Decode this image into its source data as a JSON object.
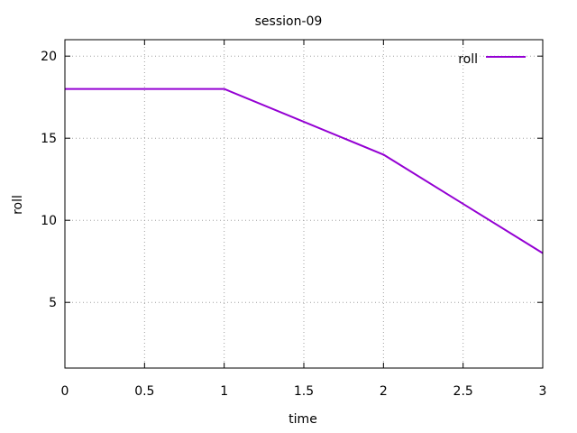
{
  "chart_data": {
    "type": "line",
    "title": "session-09",
    "xlabel": "time",
    "ylabel": "roll",
    "xlim": [
      0,
      3
    ],
    "ylim": [
      1,
      21
    ],
    "xticks": [
      0,
      0.5,
      1,
      1.5,
      2,
      2.5,
      3
    ],
    "xtick_labels": [
      "0",
      "0.5",
      "1",
      "1.5",
      "2",
      "2.5",
      "3"
    ],
    "yticks": [
      5,
      10,
      15,
      20
    ],
    "ytick_labels": [
      "5",
      "10",
      "15",
      "20"
    ],
    "grid": true,
    "legend_position": "top-right",
    "series": [
      {
        "name": "roll",
        "color": "#9400d3",
        "x": [
          0,
          1,
          2,
          3
        ],
        "y": [
          18,
          18,
          14,
          8
        ]
      }
    ]
  }
}
